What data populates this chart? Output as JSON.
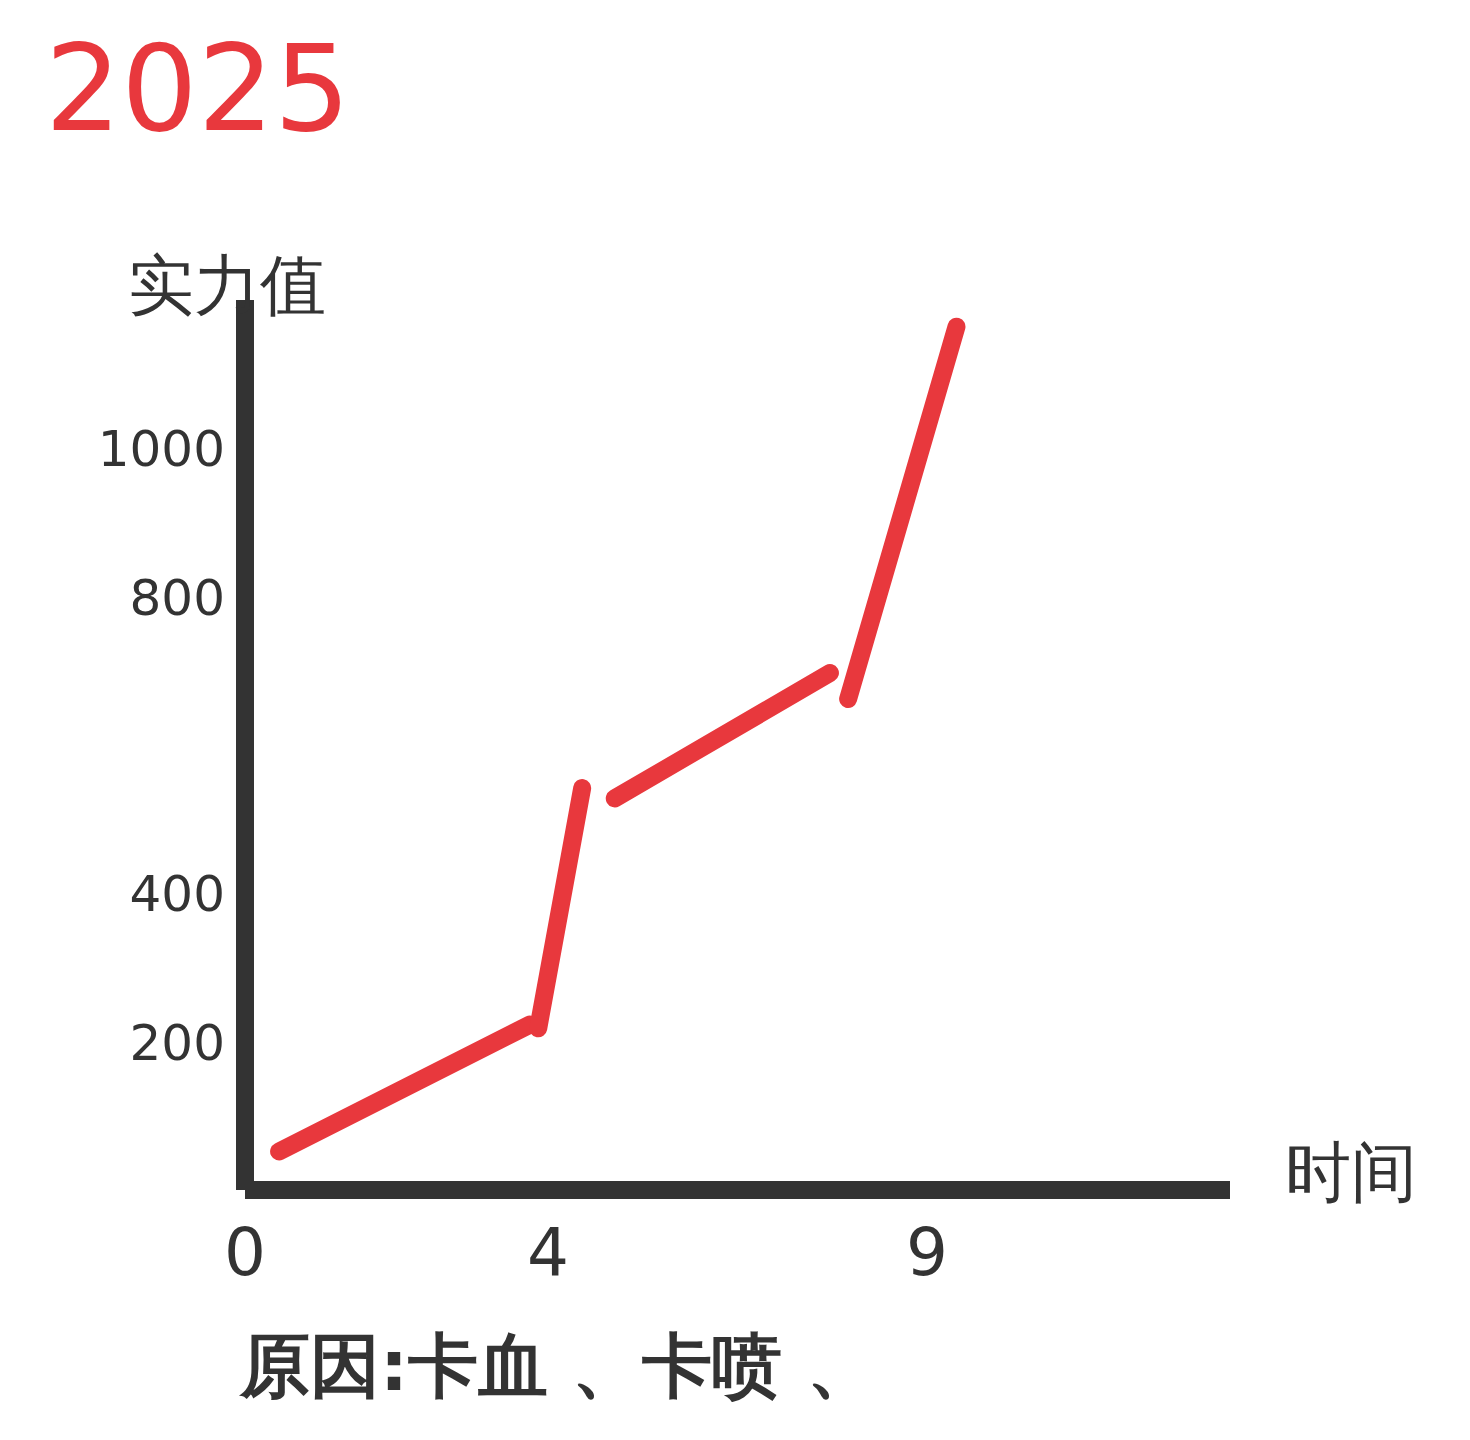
{
  "chart_data": {
    "type": "line",
    "title": "2025",
    "xlabel": "时间",
    "ylabel": "实力值",
    "annotations": [
      "原因:卡血 、卡喷 、"
    ],
    "xlim": [
      0,
      13
    ],
    "ylim": [
      0,
      1200
    ],
    "xticks": [
      0,
      4,
      9
    ],
    "yticks": [
      200,
      400,
      800,
      1000
    ],
    "grid": false,
    "marker": "none",
    "line_style": "solid",
    "series": [
      {
        "color": "#e8383d",
        "x": [
          0.45,
          3.76
        ],
        "values": [
          52,
          223
        ]
      },
      {
        "color": "#e8383d",
        "x": [
          3.87,
          4.45
        ],
        "values": [
          218,
          542
        ]
      },
      {
        "color": "#e8383d",
        "x": [
          4.88,
          7.72
        ],
        "values": [
          528,
          697
        ]
      },
      {
        "color": "#e8383d",
        "x": [
          7.96,
          9.39
        ],
        "values": [
          662,
          1164
        ]
      }
    ]
  }
}
